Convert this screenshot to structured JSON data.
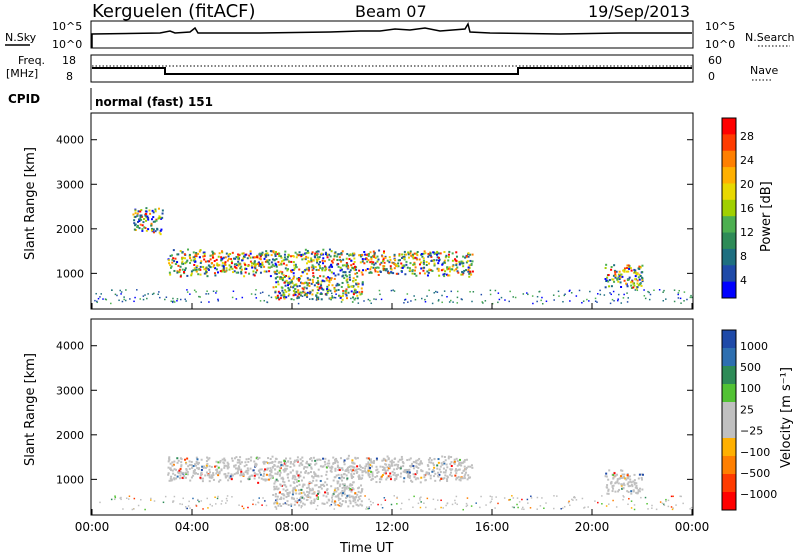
{
  "header": {
    "station": "Kerguelen (fitACF)",
    "beam": "Beam 07",
    "date": "19/Sep/2013"
  },
  "status_panels": {
    "nsky_label": "N.Sky",
    "nsky_ticks": [
      "10^5",
      "10^0"
    ],
    "nsearch_label": "N.Search",
    "nsearch_ticks": [
      "10^5",
      "10^0"
    ],
    "freq_label_line1": "Freq.",
    "freq_label_line2": "[MHz]",
    "freq_ticks": [
      "18",
      "8"
    ],
    "nave_label": "Nave",
    "nave_ticks": [
      "60",
      "0"
    ],
    "cpid_label": "CPID",
    "cpid_value": "normal (fast) 151"
  },
  "chart_data": [
    {
      "type": "heatmap",
      "name": "power-panel",
      "ylabel": "Slant Range [km]",
      "y_ticks": [
        "4000",
        "3000",
        "2000",
        "1000"
      ],
      "x_ticks": [
        "00:00",
        "04:00",
        "08:00",
        "12:00",
        "16:00",
        "20:00",
        "00:00"
      ],
      "colorbar_label": "Power [dB]",
      "colorbar_ticks": [
        "28",
        "24",
        "20",
        "16",
        "12",
        "8",
        "4"
      ],
      "colorbar_colors": [
        "#ff0000",
        "#ff3b00",
        "#ff7f00",
        "#ffb000",
        "#e8d800",
        "#a0d000",
        "#4caf50",
        "#2e8b57",
        "#1e6f80",
        "#1f4aa8",
        "#0000ff"
      ],
      "features": [
        {
          "start_h": 3.0,
          "end_h": 15.2,
          "range_km": 1250,
          "strength": 20
        },
        {
          "start_h": 7.2,
          "end_h": 10.8,
          "range_km": 700,
          "strength": 28
        },
        {
          "start_h": 20.5,
          "end_h": 22.0,
          "range_km": 950,
          "strength": 20
        },
        {
          "start_h": 1.6,
          "end_h": 2.8,
          "range_km": 2200,
          "strength": 12
        }
      ]
    },
    {
      "type": "heatmap",
      "name": "velocity-panel",
      "ylabel": "Slant Range [km]",
      "xlabel": "Time UT",
      "y_ticks": [
        "4000",
        "3000",
        "2000",
        "1000"
      ],
      "x_ticks": [
        "00:00",
        "04:00",
        "08:00",
        "12:00",
        "16:00",
        "20:00",
        "00:00"
      ],
      "colorbar_label": "Velocity [m s⁻¹]",
      "colorbar_ticks": [
        "1000",
        "500",
        "100",
        "25",
        "−25",
        "−100",
        "−500",
        "−1000"
      ],
      "colorbar_colors": [
        "#1f4aa8",
        "#2e6fb0",
        "#2e8b57",
        "#52c234",
        "#c0c0c0",
        "#c0c0c0",
        "#ffb000",
        "#ff7f00",
        "#ff3b00",
        "#ff0000"
      ],
      "features": [
        {
          "start_h": 3.0,
          "end_h": 15.2,
          "range_km": 1250,
          "velocity": 0
        },
        {
          "start_h": 7.2,
          "end_h": 10.8,
          "range_km": 700,
          "velocity": 0
        },
        {
          "start_h": 20.5,
          "end_h": 22.0,
          "range_km": 950,
          "velocity": 0
        }
      ]
    }
  ]
}
